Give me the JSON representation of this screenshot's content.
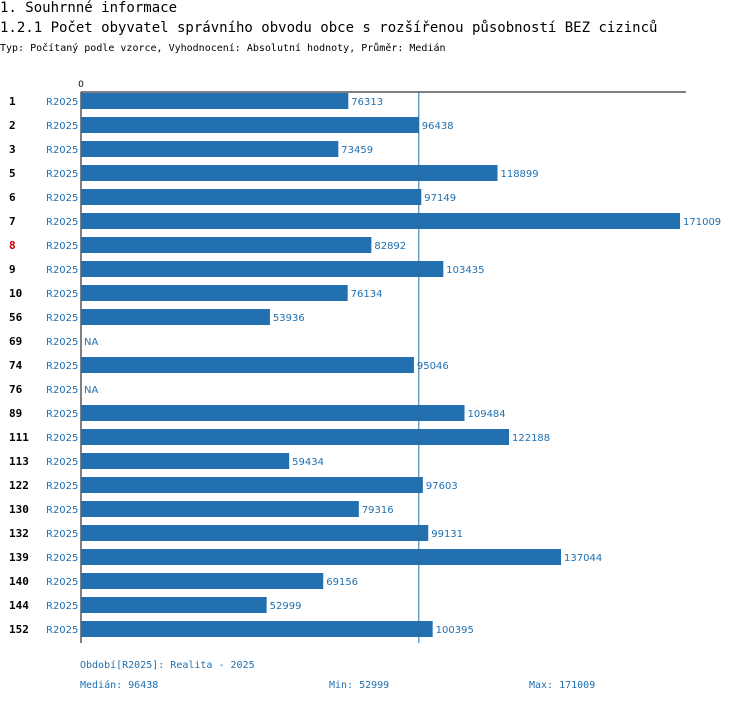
{
  "section_title": "1. Souhrnné informace",
  "subsection_title": "1.2.1 Počet obyvatel správního obvodu obce s rozšířenou působností BEZ cizinců",
  "subtitle": "Typ: Počítaný podle vzorce, Vyhodnocení: Absolutní hodnoty, Průměr: Medián",
  "colors": {
    "bar": "#2270b0",
    "text_blue": "#2070b0",
    "highlight": "#cc0000"
  },
  "chart_data": {
    "type": "bar",
    "orientation": "horizontal",
    "axis_zero_label": "0",
    "xlim": [
      0,
      171009
    ],
    "reference_line": 96438,
    "highlight_category": "8",
    "rows": [
      {
        "category": "1",
        "period": "R2025",
        "value": 76313,
        "label": "76313"
      },
      {
        "category": "2",
        "period": "R2025",
        "value": 96438,
        "label": "96438"
      },
      {
        "category": "3",
        "period": "R2025",
        "value": 73459,
        "label": "73459"
      },
      {
        "category": "5",
        "period": "R2025",
        "value": 118899,
        "label": "118899"
      },
      {
        "category": "6",
        "period": "R2025",
        "value": 97149,
        "label": "97149"
      },
      {
        "category": "7",
        "period": "R2025",
        "value": 171009,
        "label": "171009"
      },
      {
        "category": "8",
        "period": "R2025",
        "value": 82892,
        "label": "82892"
      },
      {
        "category": "9",
        "period": "R2025",
        "value": 103435,
        "label": "103435"
      },
      {
        "category": "10",
        "period": "R2025",
        "value": 76134,
        "label": "76134"
      },
      {
        "category": "56",
        "period": "R2025",
        "value": 53936,
        "label": "53936"
      },
      {
        "category": "69",
        "period": "R2025",
        "value": null,
        "label": "NA"
      },
      {
        "category": "74",
        "period": "R2025",
        "value": 95046,
        "label": "95046"
      },
      {
        "category": "76",
        "period": "R2025",
        "value": null,
        "label": "NA"
      },
      {
        "category": "89",
        "period": "R2025",
        "value": 109484,
        "label": "109484"
      },
      {
        "category": "111",
        "period": "R2025",
        "value": 122188,
        "label": "122188"
      },
      {
        "category": "113",
        "period": "R2025",
        "value": 59434,
        "label": "59434"
      },
      {
        "category": "122",
        "period": "R2025",
        "value": 97603,
        "label": "97603"
      },
      {
        "category": "130",
        "period": "R2025",
        "value": 79316,
        "label": "79316"
      },
      {
        "category": "132",
        "period": "R2025",
        "value": 99131,
        "label": "99131"
      },
      {
        "category": "139",
        "period": "R2025",
        "value": 137044,
        "label": "137044"
      },
      {
        "category": "140",
        "period": "R2025",
        "value": 69156,
        "label": "69156"
      },
      {
        "category": "144",
        "period": "R2025",
        "value": 52999,
        "label": "52999"
      },
      {
        "category": "152",
        "period": "R2025",
        "value": 100395,
        "label": "100395"
      }
    ]
  },
  "footer": {
    "period_note": "Období[R2025]: Realita - 2025",
    "median": "Medián: 96438",
    "min": "Min: 52999",
    "max": "Max: 171009"
  }
}
